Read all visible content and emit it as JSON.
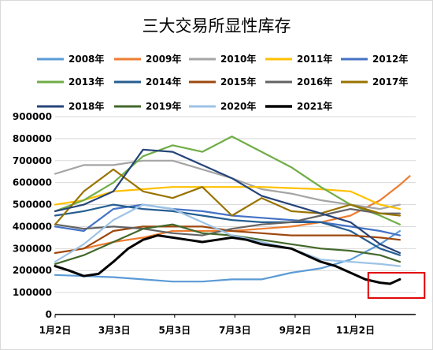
{
  "chart_data": {
    "type": "line",
    "title": "三大交易所显性库存",
    "xlabel": "",
    "ylabel": "",
    "ylim": [
      0,
      900000
    ],
    "y_ticks": [
      "0",
      "100000",
      "200000",
      "300000",
      "400000",
      "500000",
      "600000",
      "700000",
      "800000",
      "900000"
    ],
    "y_tick_values": [
      0,
      100000,
      200000,
      300000,
      400000,
      500000,
      600000,
      700000,
      800000,
      900000
    ],
    "x_ticks": [
      "1月2日",
      "3月3日",
      "5月3日",
      "7月3日",
      "9月2日",
      "11月2日"
    ],
    "x_tick_days": [
      1,
      61,
      122,
      183,
      244,
      305
    ],
    "xlim_days": [
      1,
      366
    ],
    "grid": "horizontal",
    "legend_position": "top",
    "series": [
      {
        "name": "2008年",
        "color": "#5B9BD5",
        "x": [
          1,
          30,
          60,
          90,
          120,
          150,
          180,
          210,
          240,
          270,
          300,
          330,
          350
        ],
        "values": [
          180000,
          175000,
          170000,
          160000,
          150000,
          150000,
          160000,
          160000,
          190000,
          210000,
          250000,
          320000,
          380000
        ]
      },
      {
        "name": "2009年",
        "color": "#ED7D31",
        "x": [
          1,
          30,
          60,
          90,
          120,
          150,
          180,
          210,
          240,
          270,
          300,
          330,
          350,
          360
        ],
        "values": [
          280000,
          300000,
          330000,
          350000,
          380000,
          380000,
          380000,
          390000,
          400000,
          420000,
          450000,
          520000,
          590000,
          630000
        ]
      },
      {
        "name": "2010年",
        "color": "#A5A5A5",
        "x": [
          1,
          30,
          60,
          90,
          120,
          150,
          180,
          210,
          240,
          270,
          300,
          330,
          350
        ],
        "values": [
          640000,
          680000,
          680000,
          700000,
          700000,
          660000,
          620000,
          570000,
          550000,
          520000,
          500000,
          480000,
          500000
        ]
      },
      {
        "name": "2011年",
        "color": "#FFC000",
        "x": [
          1,
          30,
          60,
          90,
          120,
          150,
          180,
          210,
          240,
          270,
          300,
          330,
          350
        ],
        "values": [
          500000,
          520000,
          560000,
          570000,
          580000,
          580000,
          580000,
          580000,
          575000,
          570000,
          560000,
          500000,
          480000
        ]
      },
      {
        "name": "2012年",
        "color": "#4472C4",
        "x": [
          1,
          30,
          60,
          90,
          120,
          150,
          180,
          210,
          240,
          270,
          300,
          330,
          350
        ],
        "values": [
          400000,
          380000,
          480000,
          500000,
          480000,
          470000,
          450000,
          440000,
          430000,
          420000,
          400000,
          380000,
          360000
        ]
      },
      {
        "name": "2013年",
        "color": "#70AD47",
        "x": [
          1,
          30,
          60,
          90,
          120,
          150,
          180,
          210,
          240,
          270,
          300,
          330,
          350
        ],
        "values": [
          470000,
          520000,
          600000,
          720000,
          770000,
          740000,
          810000,
          740000,
          670000,
          580000,
          500000,
          450000,
          410000
        ]
      },
      {
        "name": "2014年",
        "color": "#255E91",
        "x": [
          1,
          30,
          60,
          90,
          120,
          150,
          180,
          210,
          240,
          270,
          300,
          330,
          350
        ],
        "values": [
          450000,
          470000,
          500000,
          480000,
          470000,
          450000,
          430000,
          420000,
          420000,
          420000,
          380000,
          300000,
          270000
        ]
      },
      {
        "name": "2015年",
        "color": "#9E480E",
        "x": [
          1,
          30,
          60,
          90,
          120,
          150,
          180,
          210,
          240,
          270,
          300,
          330,
          350
        ],
        "values": [
          280000,
          300000,
          380000,
          400000,
          400000,
          400000,
          380000,
          370000,
          360000,
          360000,
          360000,
          350000,
          340000
        ]
      },
      {
        "name": "2016年",
        "color": "#636363",
        "x": [
          1,
          30,
          60,
          90,
          120,
          150,
          180,
          210,
          240,
          270,
          300,
          330,
          350
        ],
        "values": [
          410000,
          390000,
          400000,
          390000,
          370000,
          360000,
          390000,
          410000,
          420000,
          450000,
          480000,
          460000,
          460000
        ]
      },
      {
        "name": "2017年",
        "color": "#997300",
        "x": [
          1,
          30,
          60,
          90,
          120,
          150,
          180,
          210,
          240,
          270,
          300,
          330,
          350
        ],
        "values": [
          410000,
          560000,
          660000,
          560000,
          530000,
          580000,
          450000,
          530000,
          470000,
          460000,
          500000,
          460000,
          450000
        ]
      },
      {
        "name": "2018年",
        "color": "#264478",
        "x": [
          1,
          30,
          60,
          90,
          120,
          150,
          180,
          210,
          240,
          270,
          300,
          330,
          350
        ],
        "values": [
          470000,
          500000,
          560000,
          750000,
          740000,
          680000,
          620000,
          540000,
          500000,
          460000,
          420000,
          320000,
          280000
        ]
      },
      {
        "name": "2019年",
        "color": "#43682B",
        "x": [
          1,
          30,
          60,
          90,
          120,
          150,
          180,
          210,
          240,
          270,
          300,
          330,
          350
        ],
        "values": [
          230000,
          270000,
          330000,
          390000,
          410000,
          370000,
          360000,
          340000,
          320000,
          300000,
          290000,
          270000,
          240000
        ]
      },
      {
        "name": "2020年",
        "color": "#9DC3E6",
        "x": [
          1,
          30,
          60,
          90,
          120,
          150,
          180,
          210,
          240,
          270,
          300,
          330,
          350
        ],
        "values": [
          240000,
          320000,
          430000,
          500000,
          480000,
          420000,
          360000,
          330000,
          300000,
          250000,
          240000,
          230000,
          220000
        ]
      },
      {
        "name": "2021年",
        "color": "#000000",
        "x": [
          1,
          15,
          30,
          45,
          60,
          75,
          90,
          105,
          120,
          135,
          150,
          165,
          180,
          195,
          210,
          225,
          240,
          255,
          270,
          285,
          300,
          315,
          330,
          340,
          350
        ],
        "values": [
          220000,
          200000,
          175000,
          185000,
          240000,
          300000,
          340000,
          360000,
          350000,
          340000,
          330000,
          340000,
          350000,
          340000,
          320000,
          310000,
          300000,
          270000,
          240000,
          220000,
          190000,
          160000,
          145000,
          140000,
          160000
        ]
      }
    ],
    "annotations": [
      {
        "type": "box",
        "color": "#E00000",
        "x_range": [
          318,
          375
        ],
        "y_range": [
          75000,
          190000
        ]
      }
    ]
  }
}
